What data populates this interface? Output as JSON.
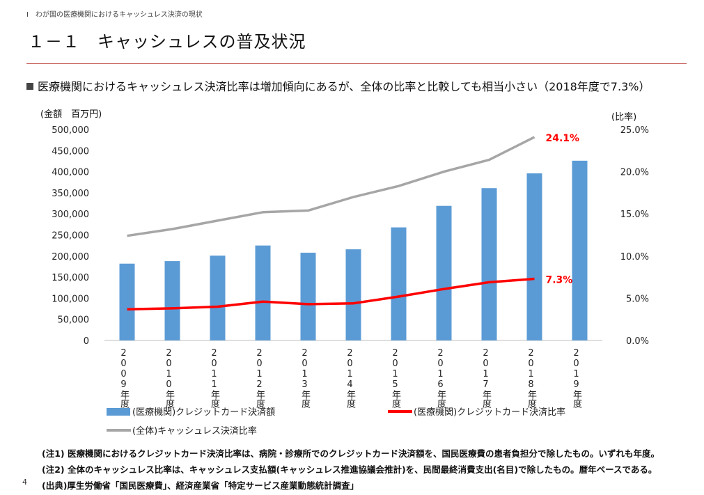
{
  "breadcrumb": "Ⅰ　わが国の医療機関におけるキャッシュレス決済の現状",
  "page_title": "１－１　キャッシュレスの普及状況",
  "summary": "医療機関におけるキャッシュレス決済比率は増加傾向にあるが、全体の比率と比較しても相当小さい（2018年度で7.3%）",
  "notes": [
    "(注1) 医療機関におけるクレジットカード決済比率は、病院・診療所でのクレジットカード決済額を、国民医療費の患者負担分で除したもの。いずれも年度。",
    "(注2) 全体のキャッシュレス比率は、キャッシュレス支払額(キャッシュレス推進協議会推計)を、民間最終消費支出(名目)で除したもの。暦年ベースである。",
    "(出典)厚生労働省「国民医療費」、経済産業省「特定サービス産業動態統計調査」"
  ],
  "page_number": "4",
  "chart_data": {
    "type": "bar",
    "categories": [
      "2009年度",
      "2010年度",
      "2011年度",
      "2012年度",
      "2013年度",
      "2014年度",
      "2015年度",
      "2016年度",
      "2017年度",
      "2018年度",
      "2019年度"
    ],
    "ylabel_left": "(金額　百万円)",
    "ylabel_right": "(比率)",
    "ylim_left": [
      0,
      500000
    ],
    "ylim_right": [
      0,
      25
    ],
    "left_ticks": [
      "0",
      "50,000",
      "100,000",
      "150,000",
      "200,000",
      "250,000",
      "300,000",
      "350,000",
      "400,000",
      "450,000",
      "500,000"
    ],
    "right_ticks": [
      "0.0%",
      "5.0%",
      "10.0%",
      "15.0%",
      "20.0%",
      "25.0%"
    ],
    "series": [
      {
        "name": "(医療機関)クレジットカード決済額",
        "kind": "bar",
        "axis": "left",
        "color": "#5b9bd5",
        "values": [
          182000,
          188000,
          201000,
          225000,
          208000,
          216000,
          268000,
          319000,
          361000,
          396000,
          426000
        ]
      },
      {
        "name": "(医療機関)クレジットカード決済比率",
        "kind": "line",
        "axis": "right",
        "color": "#ff0000",
        "values": [
          3.7,
          3.8,
          4.0,
          4.6,
          4.3,
          4.4,
          5.2,
          6.1,
          6.9,
          7.3,
          null
        ]
      },
      {
        "name": "(全体)キャッシュレス決済比率",
        "kind": "line",
        "axis": "right",
        "color": "#a6a6a6",
        "values": [
          12.4,
          13.2,
          14.2,
          15.2,
          15.4,
          17.0,
          18.3,
          20.0,
          21.4,
          24.1,
          null
        ]
      }
    ],
    "annotations": [
      {
        "text": "24.1%",
        "series": 2,
        "index": 9,
        "color": "#ff0000"
      },
      {
        "text": "7.3%",
        "series": 1,
        "index": 9,
        "color": "#ff0000"
      }
    ],
    "legend": [
      "(医療機関)クレジットカード決済額",
      "(医療機関)クレジットカード決済比率",
      "(全体)キャッシュレス決済比率"
    ],
    "legend_placement": "bottom",
    "grid": false
  }
}
